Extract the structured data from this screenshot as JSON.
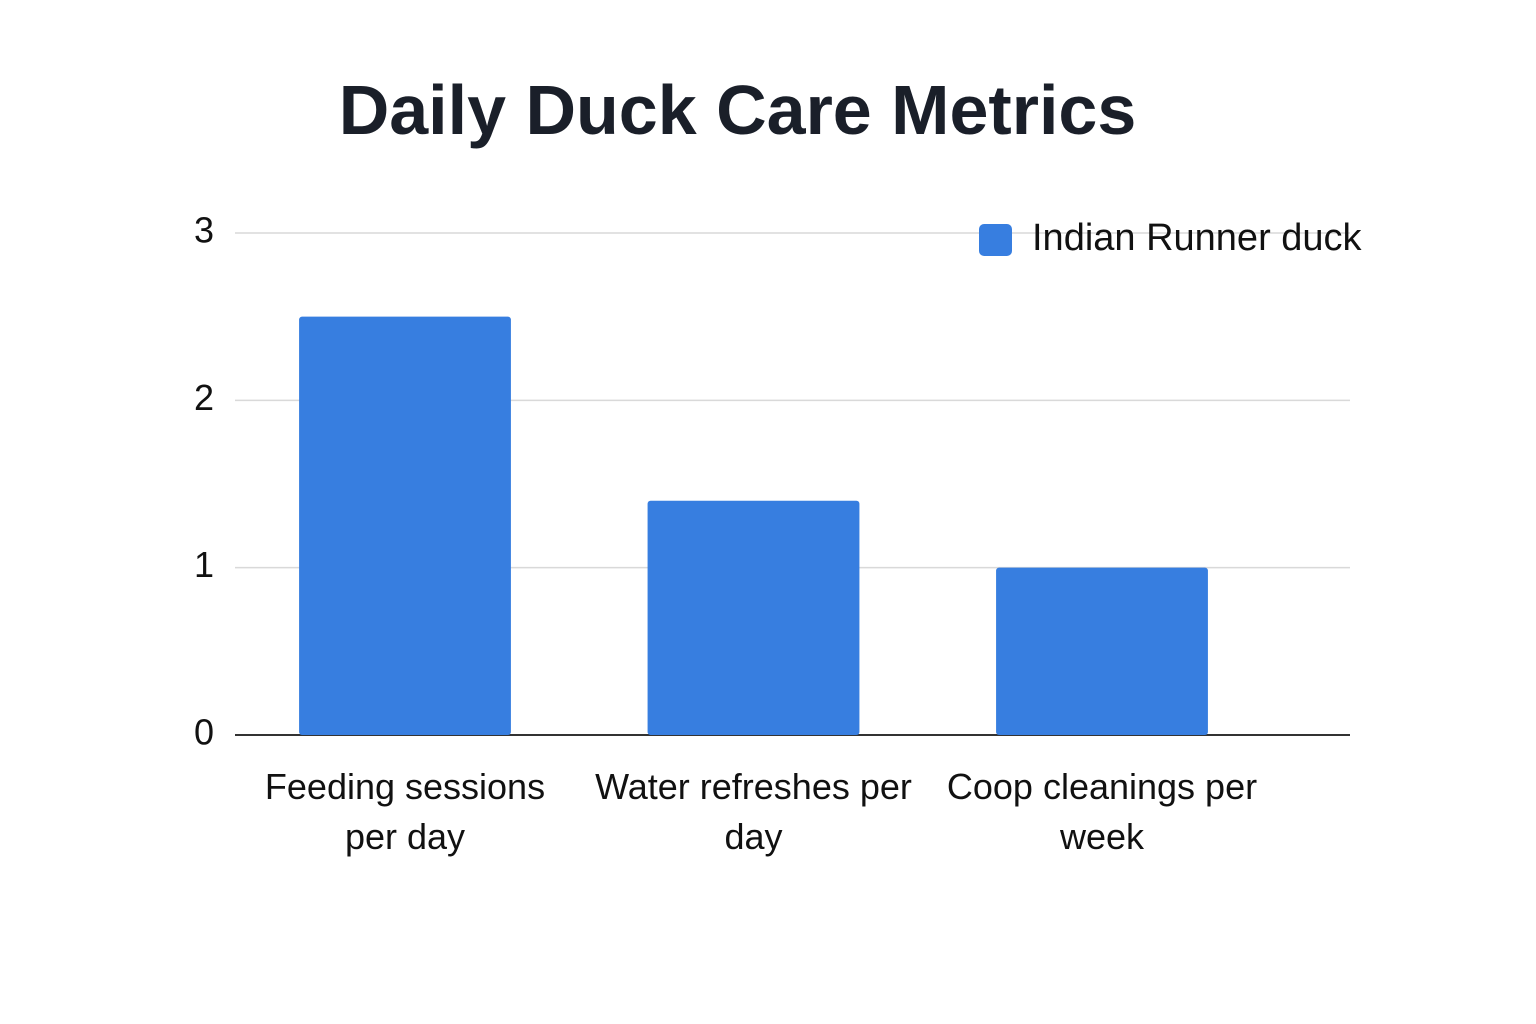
{
  "chart_data": {
    "type": "bar",
    "title": "Daily Duck Care Metrics",
    "categories": [
      "Feeding sessions per day",
      "Water refreshes per day",
      "Coop cleanings per week"
    ],
    "series": [
      {
        "name": "Indian Runner duck",
        "color": "#377ee0",
        "values": [
          2.5,
          1.4,
          1
        ]
      }
    ],
    "ylim": [
      0,
      3
    ],
    "yticks": [
      0,
      1,
      2,
      3
    ],
    "grid": true,
    "legend": "top-right"
  }
}
